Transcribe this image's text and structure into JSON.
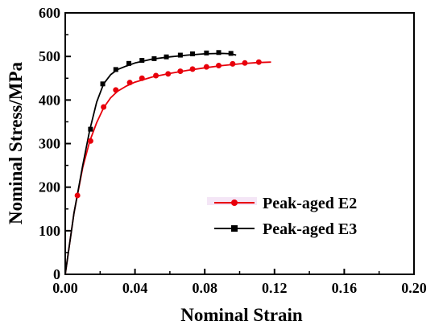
{
  "chart_data": {
    "type": "line",
    "xlabel": "Nominal Strain",
    "ylabel": "Nominal Stress/MPa",
    "xlim": [
      0.0,
      0.2
    ],
    "ylim": [
      0,
      600
    ],
    "x_ticks": [
      "0.00",
      "0.04",
      "0.08",
      "0.12",
      "0.16",
      "0.20"
    ],
    "y_ticks": [
      "0",
      "100",
      "200",
      "300",
      "400",
      "500",
      "600"
    ],
    "legend_position": "center-right",
    "grid": false,
    "series": [
      {
        "name": "Peak-aged E2",
        "color": "#e8000b",
        "marker": "circle",
        "curve": [
          [
            0,
            0
          ],
          [
            0.005,
            140
          ],
          [
            0.01,
            245
          ],
          [
            0.014,
            305
          ],
          [
            0.018,
            348
          ],
          [
            0.022,
            382
          ],
          [
            0.026,
            405
          ],
          [
            0.03,
            420
          ],
          [
            0.035,
            432
          ],
          [
            0.04,
            441
          ],
          [
            0.05,
            453
          ],
          [
            0.06,
            461
          ],
          [
            0.07,
            468
          ],
          [
            0.08,
            474
          ],
          [
            0.09,
            479
          ],
          [
            0.1,
            483
          ],
          [
            0.11,
            486
          ],
          [
            0.118,
            487
          ]
        ],
        "markers": [
          [
            0.007,
            181
          ],
          [
            0.0145,
            306
          ],
          [
            0.022,
            384
          ],
          [
            0.029,
            423
          ],
          [
            0.037,
            440
          ],
          [
            0.044,
            450
          ],
          [
            0.052,
            456
          ],
          [
            0.059,
            460
          ],
          [
            0.066,
            466
          ],
          [
            0.073,
            471
          ],
          [
            0.081,
            476
          ],
          [
            0.088,
            479
          ],
          [
            0.096,
            483
          ],
          [
            0.103,
            485
          ],
          [
            0.111,
            487
          ]
        ]
      },
      {
        "name": "Peak-aged E3",
        "color": "#000000",
        "marker": "square",
        "curve": [
          [
            0,
            0
          ],
          [
            0.005,
            140
          ],
          [
            0.01,
            250
          ],
          [
            0.014,
            330
          ],
          [
            0.018,
            395
          ],
          [
            0.022,
            437
          ],
          [
            0.026,
            458
          ],
          [
            0.03,
            470
          ],
          [
            0.035,
            478
          ],
          [
            0.04,
            485
          ],
          [
            0.05,
            494
          ],
          [
            0.06,
            499
          ],
          [
            0.07,
            503
          ],
          [
            0.08,
            506
          ],
          [
            0.09,
            507
          ],
          [
            0.095,
            506
          ],
          [
            0.098,
            503
          ]
        ],
        "markers": [
          [
            0.0145,
            333
          ],
          [
            0.0215,
            437
          ],
          [
            0.029,
            470
          ],
          [
            0.0365,
            484
          ],
          [
            0.044,
            491
          ],
          [
            0.051,
            495
          ],
          [
            0.058,
            499
          ],
          [
            0.066,
            503
          ],
          [
            0.073,
            506
          ],
          [
            0.081,
            508
          ],
          [
            0.088,
            509
          ],
          [
            0.095,
            507
          ]
        ]
      }
    ]
  }
}
